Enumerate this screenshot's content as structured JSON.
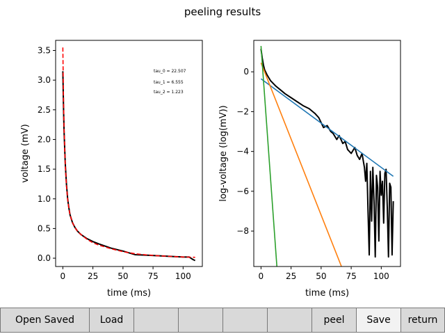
{
  "figure": {
    "title": "peeling results"
  },
  "toolbar": {
    "buttons": [
      {
        "label": "Open Saved"
      },
      {
        "label": "Load"
      },
      {
        "label": ""
      },
      {
        "label": ""
      },
      {
        "label": ""
      },
      {
        "label": ""
      },
      {
        "label": "peel"
      },
      {
        "label": "Save"
      },
      {
        "label": "return"
      }
    ]
  },
  "chart_data": [
    {
      "type": "line",
      "xlabel": "time (ms)",
      "ylabel": "voltage (mV)",
      "xlim": [
        -6,
        116
      ],
      "ylim": [
        -0.14,
        3.67
      ],
      "xticks": [
        0,
        25,
        50,
        75,
        100
      ],
      "yticks": [
        0.0,
        0.5,
        1.0,
        1.5,
        2.0,
        2.5,
        3.0,
        3.5
      ],
      "ytick_labels": [
        "0.0",
        "0.5",
        "1.0",
        "1.5",
        "2.0",
        "2.5",
        "3.0",
        "3.5"
      ],
      "annotations": [
        "tau_0 = 22.507",
        "tau_1 = 6.555",
        "tau_2 = 1.223"
      ],
      "series": [
        {
          "color": "#000000",
          "style": "solid",
          "x": [
            0,
            0.5,
            1,
            2,
            3,
            4,
            5,
            6,
            8,
            10,
            12,
            15,
            20,
            25,
            30,
            40,
            50,
            60,
            70,
            80,
            90,
            100,
            105,
            108,
            110
          ],
          "y": [
            3.15,
            2.6,
            2.15,
            1.6,
            1.25,
            1.0,
            0.85,
            0.73,
            0.6,
            0.52,
            0.46,
            0.4,
            0.33,
            0.28,
            0.24,
            0.17,
            0.12,
            0.06,
            0.05,
            0.04,
            0.03,
            0.02,
            0.02,
            -0.02,
            -0.04
          ]
        },
        {
          "color": "#ff0000",
          "style": "dashed",
          "x": [
            0,
            0.5,
            1,
            2,
            3,
            4,
            5,
            6,
            8,
            10,
            12,
            15,
            20,
            25,
            30,
            40,
            50,
            60,
            70,
            80,
            90,
            100,
            110
          ],
          "y": [
            3.55,
            2.75,
            2.2,
            1.58,
            1.22,
            0.99,
            0.84,
            0.73,
            0.6,
            0.52,
            0.46,
            0.4,
            0.32,
            0.26,
            0.22,
            0.16,
            0.11,
            0.075,
            0.055,
            0.04,
            0.03,
            0.02,
            0.015
          ]
        }
      ]
    },
    {
      "type": "line",
      "xlabel": "time (ms)",
      "ylabel": "log-voltage (log(mV))",
      "xlim": [
        -6,
        116
      ],
      "ylim": [
        -9.78,
        1.58
      ],
      "xticks": [
        0,
        25,
        50,
        75,
        100
      ],
      "yticks": [
        0,
        -2,
        -4,
        -6,
        -8
      ],
      "ytick_labels": [
        "0",
        "−2",
        "−4",
        "−6",
        "−8"
      ],
      "series": [
        {
          "color": "#000000",
          "style": "solid",
          "x": [
            0,
            1,
            2,
            3,
            5,
            8,
            12,
            16,
            20,
            25,
            30,
            35,
            40,
            45,
            48,
            50,
            52,
            55,
            58,
            60,
            63,
            65,
            68,
            70,
            72,
            75,
            78,
            80,
            82,
            84,
            86,
            87,
            88,
            89,
            90,
            91,
            92,
            93,
            94,
            95,
            96,
            97,
            98,
            99,
            100,
            101,
            102,
            103,
            104,
            105,
            106,
            107,
            108,
            109,
            110
          ],
          "y": [
            1.15,
            0.7,
            0.35,
            0.1,
            -0.15,
            -0.45,
            -0.7,
            -0.9,
            -1.1,
            -1.3,
            -1.5,
            -1.7,
            -1.85,
            -2.1,
            -2.3,
            -2.55,
            -2.8,
            -2.7,
            -3.0,
            -3.1,
            -3.4,
            -3.2,
            -3.6,
            -3.5,
            -3.9,
            -4.1,
            -3.8,
            -4.2,
            -4.4,
            -4.1,
            -4.8,
            -5.5,
            -4.6,
            -7.0,
            -9.2,
            -5.0,
            -7.5,
            -4.8,
            -6.5,
            -9.3,
            -5.2,
            -5.8,
            -8.5,
            -5.0,
            -6.2,
            -5.5,
            -7.6,
            -5.1,
            -4.9,
            -6.8,
            -9.3,
            -5.6,
            -5.8,
            -9.2,
            -6.5
          ]
        },
        {
          "color": "#1f77b4",
          "style": "solid",
          "x": [
            0,
            110
          ],
          "y": [
            -0.35,
            -5.25
          ]
        },
        {
          "color": "#ff7f0e",
          "style": "solid",
          "x": [
            0,
            66.9
          ],
          "y": [
            0.45,
            -9.78
          ]
        },
        {
          "color": "#2ca02c",
          "style": "solid",
          "x": [
            0,
            13.2
          ],
          "y": [
            1.3,
            -9.78
          ]
        }
      ]
    }
  ]
}
